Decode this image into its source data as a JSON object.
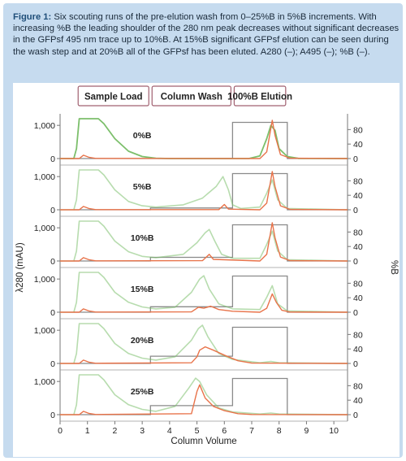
{
  "caption": {
    "label": "Figure 1:",
    "text": "Six scouting runs of the pre-elution wash from 0–25%B in 5%B increments. With increasing %B the leading shoulder of the 280 nm peak decreases without significant decreases in the GFPsf 495 nm trace up to 10%B. At 15%B significant GFPsf elution can be seen during the wash step and at 20%B all of the GFPsf has been eluted. A280 (–); A495 (–); %B (–)."
  },
  "colors": {
    "a280": "#7cbf6b",
    "a495": "#e8734a",
    "percentB": "#8a8a8a",
    "panel": "#c6dbef"
  },
  "chart_data": {
    "type": "line",
    "stages": [
      {
        "label": "Sample Load",
        "x_start": 0.6,
        "x_end": 3.3
      },
      {
        "label": "Column Wash",
        "x_start": 3.3,
        "x_end": 6.3
      },
      {
        "label": "100%B Elution",
        "x_start": 6.3,
        "x_end": 8.3
      }
    ],
    "xlabel": "Column Volume",
    "xlim": [
      0,
      10.5
    ],
    "x_ticks": [
      "0",
      "1",
      "2",
      "3",
      "4",
      "5",
      "6",
      "7",
      "8",
      "9",
      "10"
    ],
    "ylabel_left": "λ280 (mAU)",
    "ylabel_right": "%B",
    "ylim_left": [
      0,
      1200
    ],
    "ylim_right": [
      0,
      110
    ],
    "left_ticks": [
      "0",
      "1,000"
    ],
    "right_ticks": [
      "0",
      "40",
      "80"
    ],
    "series_names": [
      "A280",
      "A495",
      "%B"
    ],
    "panels": [
      {
        "label": "0%B",
        "wash_percentB": 0,
        "a280": [
          [
            0,
            0
          ],
          [
            0.5,
            0
          ],
          [
            0.6,
            300
          ],
          [
            0.7,
            1200
          ],
          [
            1.4,
            1200
          ],
          [
            1.6,
            1050
          ],
          [
            2.0,
            600
          ],
          [
            2.5,
            220
          ],
          [
            3.0,
            60
          ],
          [
            3.5,
            10
          ],
          [
            4,
            0
          ],
          [
            6.9,
            0
          ],
          [
            7.3,
            80
          ],
          [
            7.55,
            600
          ],
          [
            7.7,
            1000
          ],
          [
            7.85,
            850
          ],
          [
            8.0,
            300
          ],
          [
            8.3,
            60
          ],
          [
            8.7,
            5
          ],
          [
            10.5,
            0
          ]
        ],
        "a495": [
          [
            0,
            0
          ],
          [
            0.7,
            0
          ],
          [
            0.85,
            100
          ],
          [
            1.05,
            40
          ],
          [
            1.3,
            5
          ],
          [
            7.3,
            0
          ],
          [
            7.55,
            200
          ],
          [
            7.75,
            1150
          ],
          [
            7.85,
            700
          ],
          [
            8.05,
            120
          ],
          [
            8.4,
            10
          ],
          [
            10.5,
            0
          ]
        ]
      },
      {
        "label": "5%B",
        "wash_percentB": 5,
        "a280": [
          [
            0,
            0
          ],
          [
            0.5,
            0
          ],
          [
            0.6,
            300
          ],
          [
            0.7,
            1200
          ],
          [
            1.4,
            1200
          ],
          [
            1.6,
            1050
          ],
          [
            2.0,
            600
          ],
          [
            2.5,
            250
          ],
          [
            3.0,
            120
          ],
          [
            3.5,
            80
          ],
          [
            4.5,
            150
          ],
          [
            5.2,
            350
          ],
          [
            5.7,
            700
          ],
          [
            5.95,
            1000
          ],
          [
            6.15,
            600
          ],
          [
            6.3,
            150
          ],
          [
            6.6,
            40
          ],
          [
            7.3,
            80
          ],
          [
            7.55,
            500
          ],
          [
            7.75,
            900
          ],
          [
            7.95,
            300
          ],
          [
            8.3,
            40
          ],
          [
            10.5,
            0
          ]
        ],
        "a495": [
          [
            0,
            0
          ],
          [
            0.7,
            0
          ],
          [
            0.85,
            100
          ],
          [
            1.05,
            40
          ],
          [
            1.3,
            5
          ],
          [
            5.8,
            5
          ],
          [
            6.0,
            160
          ],
          [
            6.15,
            20
          ],
          [
            7.3,
            0
          ],
          [
            7.55,
            200
          ],
          [
            7.75,
            1150
          ],
          [
            7.85,
            700
          ],
          [
            8.05,
            120
          ],
          [
            8.4,
            10
          ],
          [
            10.5,
            0
          ]
        ]
      },
      {
        "label": "10%B",
        "wash_percentB": 10,
        "a280": [
          [
            0,
            0
          ],
          [
            0.5,
            0
          ],
          [
            0.6,
            300
          ],
          [
            0.7,
            1200
          ],
          [
            1.4,
            1200
          ],
          [
            1.6,
            1050
          ],
          [
            2.0,
            600
          ],
          [
            2.5,
            280
          ],
          [
            3.0,
            140
          ],
          [
            3.5,
            100
          ],
          [
            4.5,
            200
          ],
          [
            5.0,
            550
          ],
          [
            5.3,
            850
          ],
          [
            5.45,
            950
          ],
          [
            5.65,
            600
          ],
          [
            5.9,
            200
          ],
          [
            6.3,
            80
          ],
          [
            7.3,
            80
          ],
          [
            7.55,
            500
          ],
          [
            7.75,
            900
          ],
          [
            7.95,
            300
          ],
          [
            8.3,
            40
          ],
          [
            10.5,
            0
          ]
        ],
        "a495": [
          [
            0,
            0
          ],
          [
            0.7,
            0
          ],
          [
            0.85,
            100
          ],
          [
            1.05,
            40
          ],
          [
            1.3,
            5
          ],
          [
            5.2,
            10
          ],
          [
            5.45,
            200
          ],
          [
            5.6,
            50
          ],
          [
            7.3,
            0
          ],
          [
            7.55,
            200
          ],
          [
            7.75,
            1150
          ],
          [
            7.85,
            700
          ],
          [
            8.05,
            120
          ],
          [
            8.4,
            10
          ],
          [
            10.5,
            0
          ]
        ]
      },
      {
        "label": "15%B",
        "wash_percentB": 15,
        "a280": [
          [
            0,
            0
          ],
          [
            0.5,
            0
          ],
          [
            0.6,
            300
          ],
          [
            0.7,
            1200
          ],
          [
            1.4,
            1200
          ],
          [
            1.6,
            1050
          ],
          [
            2.0,
            600
          ],
          [
            2.5,
            300
          ],
          [
            3.0,
            160
          ],
          [
            3.5,
            100
          ],
          [
            4.2,
            150
          ],
          [
            4.8,
            600
          ],
          [
            5.1,
            1000
          ],
          [
            5.25,
            1100
          ],
          [
            5.45,
            700
          ],
          [
            5.8,
            250
          ],
          [
            6.3,
            100
          ],
          [
            7.3,
            80
          ],
          [
            7.55,
            450
          ],
          [
            7.75,
            800
          ],
          [
            7.95,
            250
          ],
          [
            8.3,
            40
          ],
          [
            10.5,
            0
          ]
        ],
        "a495": [
          [
            0,
            0
          ],
          [
            0.7,
            0
          ],
          [
            0.85,
            100
          ],
          [
            1.05,
            40
          ],
          [
            1.3,
            5
          ],
          [
            4.8,
            10
          ],
          [
            5.05,
            150
          ],
          [
            5.25,
            120
          ],
          [
            5.5,
            180
          ],
          [
            5.8,
            80
          ],
          [
            6.3,
            30
          ],
          [
            7.3,
            0
          ],
          [
            7.55,
            120
          ],
          [
            7.75,
            550
          ],
          [
            7.9,
            300
          ],
          [
            8.1,
            60
          ],
          [
            8.4,
            5
          ],
          [
            10.5,
            0
          ]
        ]
      },
      {
        "label": "20%B",
        "wash_percentB": 20,
        "a280": [
          [
            0,
            0
          ],
          [
            0.5,
            0
          ],
          [
            0.6,
            300
          ],
          [
            0.7,
            1200
          ],
          [
            1.4,
            1200
          ],
          [
            1.6,
            1050
          ],
          [
            2.0,
            600
          ],
          [
            2.5,
            300
          ],
          [
            3.0,
            160
          ],
          [
            3.5,
            100
          ],
          [
            4.2,
            200
          ],
          [
            4.8,
            700
          ],
          [
            5.05,
            1050
          ],
          [
            5.2,
            1150
          ],
          [
            5.4,
            800
          ],
          [
            5.8,
            300
          ],
          [
            6.3,
            120
          ],
          [
            7.3,
            20
          ],
          [
            7.7,
            60
          ],
          [
            8.0,
            20
          ],
          [
            10.5,
            0
          ]
        ],
        "a495": [
          [
            0,
            0
          ],
          [
            0.7,
            0
          ],
          [
            0.85,
            100
          ],
          [
            1.05,
            40
          ],
          [
            1.3,
            5
          ],
          [
            4.8,
            20
          ],
          [
            5.0,
            200
          ],
          [
            5.1,
            400
          ],
          [
            5.3,
            500
          ],
          [
            5.6,
            400
          ],
          [
            6.0,
            250
          ],
          [
            6.5,
            80
          ],
          [
            7.0,
            10
          ],
          [
            10.5,
            0
          ]
        ]
      },
      {
        "label": "25%B",
        "wash_percentB": 25,
        "a280": [
          [
            0,
            0
          ],
          [
            0.5,
            0
          ],
          [
            0.6,
            300
          ],
          [
            0.7,
            1200
          ],
          [
            1.4,
            1200
          ],
          [
            1.6,
            1050
          ],
          [
            2.0,
            600
          ],
          [
            2.5,
            300
          ],
          [
            3.0,
            160
          ],
          [
            3.5,
            100
          ],
          [
            4.2,
            250
          ],
          [
            4.7,
            800
          ],
          [
            4.95,
            1100
          ],
          [
            5.1,
            1000
          ],
          [
            5.35,
            600
          ],
          [
            5.8,
            200
          ],
          [
            6.3,
            80
          ],
          [
            7.3,
            20
          ],
          [
            7.7,
            50
          ],
          [
            8.0,
            20
          ],
          [
            10.5,
            0
          ]
        ],
        "a495": [
          [
            0,
            0
          ],
          [
            0.7,
            0
          ],
          [
            0.85,
            100
          ],
          [
            1.05,
            40
          ],
          [
            1.3,
            5
          ],
          [
            4.8,
            30
          ],
          [
            5.0,
            700
          ],
          [
            5.1,
            900
          ],
          [
            5.3,
            500
          ],
          [
            5.6,
            250
          ],
          [
            6.0,
            120
          ],
          [
            6.5,
            30
          ],
          [
            7.0,
            5
          ],
          [
            10.5,
            0
          ]
        ]
      }
    ]
  }
}
